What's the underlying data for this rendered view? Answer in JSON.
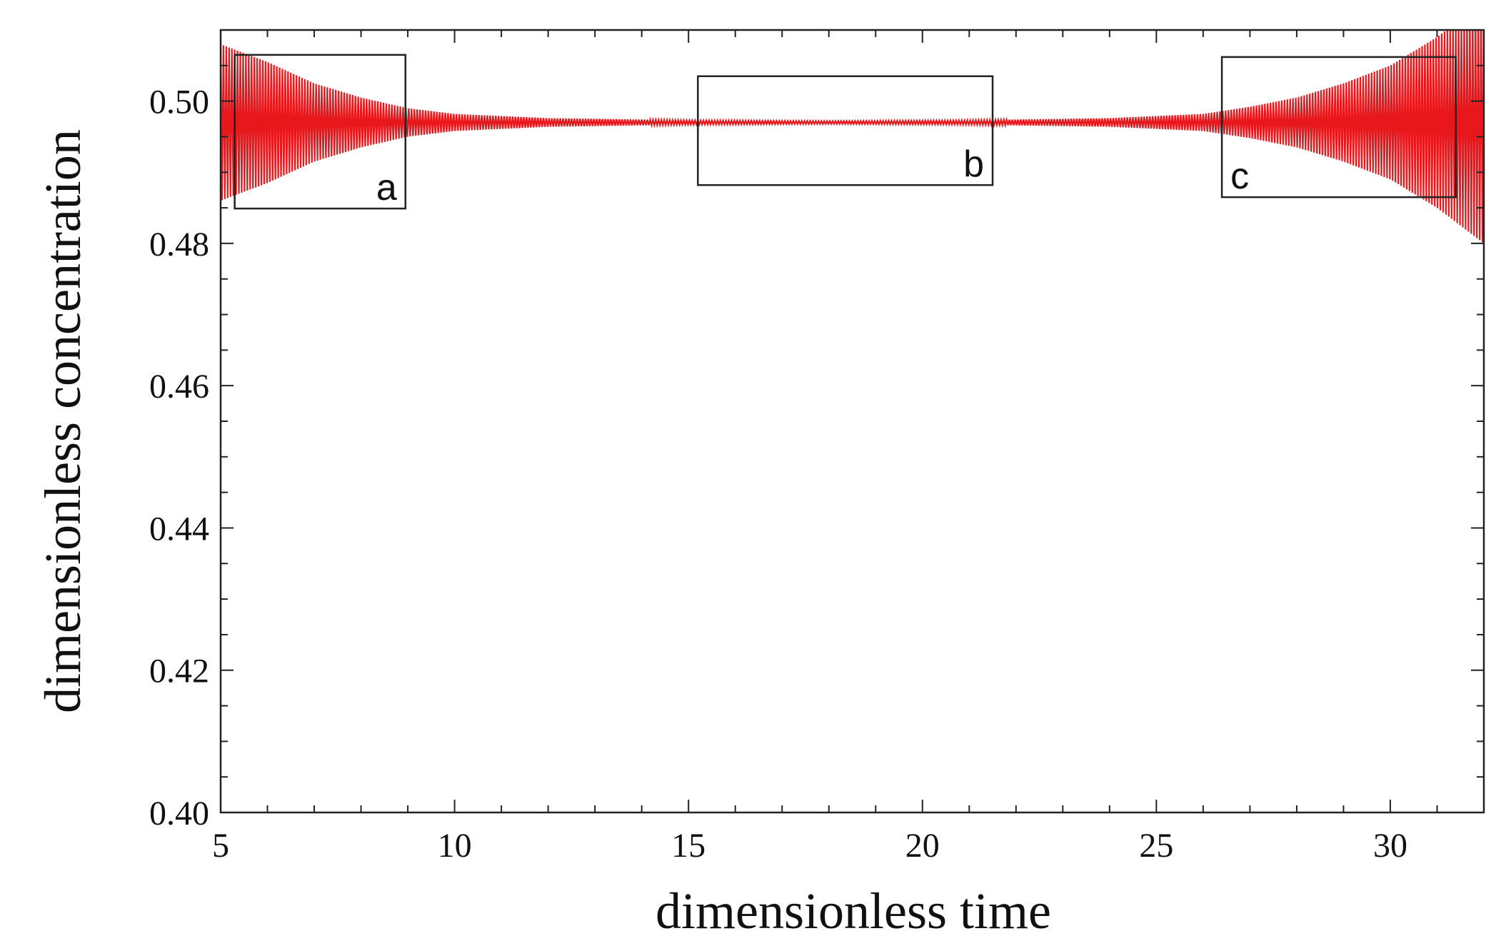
{
  "chart_data": {
    "type": "line",
    "title": "",
    "xlabel": "dimensionless time",
    "ylabel": "dimensionless concentration",
    "xlim": [
      5,
      32
    ],
    "ylim": [
      0.4,
      0.51
    ],
    "grid": false,
    "x_ticks": [
      "5",
      "10",
      "15",
      "20",
      "25",
      "30"
    ],
    "x_tick_values": [
      5,
      10,
      15,
      20,
      25,
      30
    ],
    "y_ticks": [
      "0.40",
      "0.42",
      "0.44",
      "0.46",
      "0.48",
      "0.50"
    ],
    "y_tick_values": [
      0.4,
      0.42,
      0.44,
      0.46,
      0.48,
      0.5
    ],
    "series": [
      {
        "color": "#e8171c",
        "oscillation_center": 0.497,
        "x": [
          5,
          6,
          7,
          8,
          9,
          10,
          12,
          15,
          18,
          21,
          24,
          26,
          27,
          28,
          29,
          30,
          31,
          32
        ],
        "envelope_amplitude": [
          0.011,
          0.0085,
          0.0055,
          0.0035,
          0.002,
          0.0012,
          0.0006,
          0.0003,
          0.0002,
          0.0003,
          0.0006,
          0.0012,
          0.0022,
          0.0035,
          0.0055,
          0.008,
          0.012,
          0.017
        ]
      }
    ],
    "annotations": [
      {
        "label": "a",
        "x_range": [
          5.3,
          8.95
        ],
        "y_range": [
          0.4849,
          0.5065
        ]
      },
      {
        "label": "b",
        "x_range": [
          15.2,
          21.5
        ],
        "y_range": [
          0.4882,
          0.5035
        ]
      },
      {
        "label": "c",
        "x_range": [
          26.4,
          31.4
        ],
        "y_range": [
          0.4865,
          0.5062
        ]
      }
    ]
  }
}
